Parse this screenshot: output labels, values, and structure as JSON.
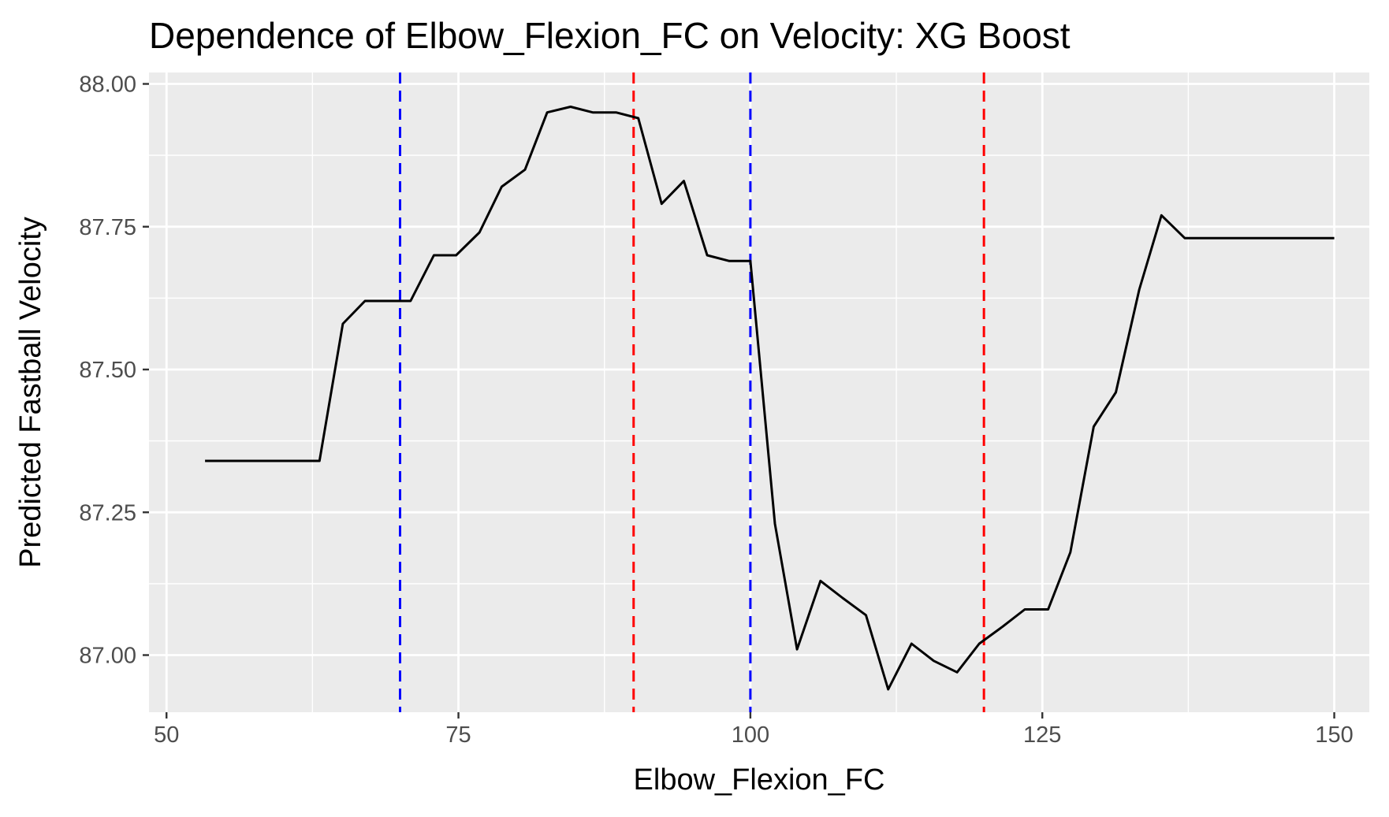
{
  "chart_data": {
    "type": "line",
    "title": "Dependence of Elbow_Flexion_FC on Velocity: XG Boost",
    "xlabel": "Elbow_Flexion_FC",
    "ylabel": "Predicted Fastball Velocity",
    "xlim": [
      48.5,
      153
    ],
    "ylim": [
      86.9,
      88.02
    ],
    "x_ticks": [
      50,
      75,
      100,
      125,
      150
    ],
    "x_tick_labels": [
      "50",
      "75",
      "100",
      "125",
      "150"
    ],
    "y_ticks": [
      87.0,
      87.25,
      87.5,
      87.75,
      88.0
    ],
    "y_tick_labels": [
      "87.00",
      "87.25",
      "87.50",
      "87.75",
      "88.00"
    ],
    "x_minor_ticks": [
      62.5,
      87.5,
      112.5,
      137.5
    ],
    "y_minor_ticks": [
      87.125,
      87.375,
      87.625,
      87.875
    ],
    "grid": true,
    "background": "#ebebeb",
    "grid_color": "#ffffff",
    "series": [
      {
        "color": "#000000",
        "x": [
          53.3,
          55.3,
          57.3,
          59.2,
          61.2,
          63.1,
          65.1,
          67.0,
          69.0,
          70.9,
          72.9,
          74.8,
          76.8,
          78.7,
          80.7,
          82.6,
          84.6,
          86.5,
          88.5,
          90.4,
          92.4,
          94.3,
          96.3,
          98.2,
          100.0,
          102.1,
          104.0,
          106.0,
          107.9,
          109.9,
          111.8,
          113.8,
          115.7,
          117.7,
          119.6,
          121.6,
          123.5,
          125.5,
          127.4,
          129.4,
          131.3,
          133.3,
          135.2,
          137.2,
          139.1,
          141.1,
          143.0,
          145.0,
          146.9,
          148.9,
          150.0
        ],
        "y": [
          87.34,
          87.34,
          87.34,
          87.34,
          87.34,
          87.34,
          87.58,
          87.62,
          87.62,
          87.62,
          87.7,
          87.7,
          87.74,
          87.82,
          87.85,
          87.95,
          87.96,
          87.95,
          87.95,
          87.94,
          87.79,
          87.83,
          87.7,
          87.69,
          87.69,
          87.23,
          87.01,
          87.13,
          87.1,
          87.07,
          86.94,
          87.02,
          86.99,
          86.97,
          87.02,
          87.05,
          87.08,
          87.08,
          87.18,
          87.4,
          87.46,
          87.64,
          87.77,
          87.73,
          87.73,
          87.73,
          87.73,
          87.73,
          87.73,
          87.73,
          87.73
        ]
      }
    ],
    "reference_lines": [
      {
        "x": 70,
        "color": "#0000ff",
        "style": "dashed"
      },
      {
        "x": 90,
        "color": "#ff0000",
        "style": "dashed"
      },
      {
        "x": 100,
        "color": "#0000ff",
        "style": "dashed"
      },
      {
        "x": 120,
        "color": "#ff0000",
        "style": "dashed"
      }
    ]
  }
}
